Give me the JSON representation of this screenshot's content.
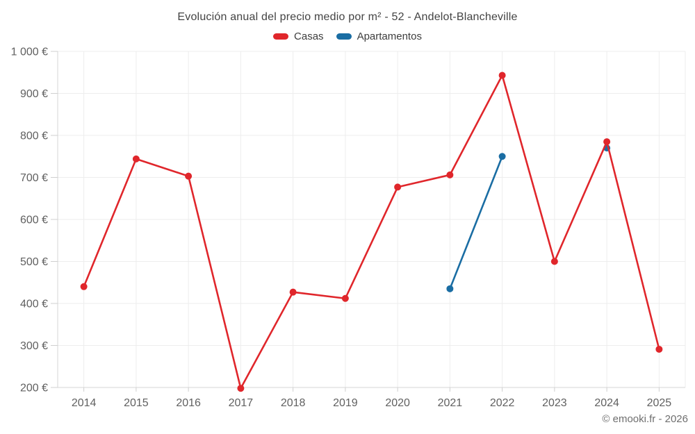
{
  "title": "Evolución anual del precio medio por m² - 52 - Andelot-Blancheville",
  "copyright": "© emooki.fr - 2026",
  "legend": {
    "items": [
      {
        "label": "Casas",
        "color": "#e0262b"
      },
      {
        "label": "Apartamentos",
        "color": "#1a6da3"
      }
    ]
  },
  "colors": {
    "casas": "#e0262b",
    "apartamentos": "#1a6da3",
    "grid": "#ededed",
    "axis": "#d4d4d4",
    "tick_text": "#606060"
  },
  "chart_data": {
    "type": "line",
    "title": "Evolución anual del precio medio por m² - 52 - Andelot-Blancheville",
    "categories": [
      "2014",
      "2015",
      "2016",
      "2017",
      "2018",
      "2019",
      "2020",
      "2021",
      "2022",
      "2023",
      "2024",
      "2025"
    ],
    "series": [
      {
        "name": "Casas",
        "color": "#e0262b",
        "values": [
          440,
          744,
          703,
          198,
          427,
          412,
          677,
          706,
          943,
          500,
          785,
          291
        ]
      },
      {
        "name": "Apartamentos",
        "color": "#1a6da3",
        "values": [
          null,
          null,
          null,
          null,
          null,
          null,
          null,
          435,
          750,
          null,
          770,
          null
        ]
      }
    ],
    "xlabel": "",
    "ylabel": "",
    "ylim": [
      200,
      1000
    ],
    "y_ticks": [
      {
        "value": 200,
        "label": "200 €"
      },
      {
        "value": 300,
        "label": "300 €"
      },
      {
        "value": 400,
        "label": "400 €"
      },
      {
        "value": 500,
        "label": "500 €"
      },
      {
        "value": 600,
        "label": "600 €"
      },
      {
        "value": 700,
        "label": "700 €"
      },
      {
        "value": 800,
        "label": "800 €"
      },
      {
        "value": 900,
        "label": "900 €"
      },
      {
        "value": 1000,
        "label": "1 000 €"
      }
    ],
    "grid": true,
    "legend_position": "top"
  }
}
